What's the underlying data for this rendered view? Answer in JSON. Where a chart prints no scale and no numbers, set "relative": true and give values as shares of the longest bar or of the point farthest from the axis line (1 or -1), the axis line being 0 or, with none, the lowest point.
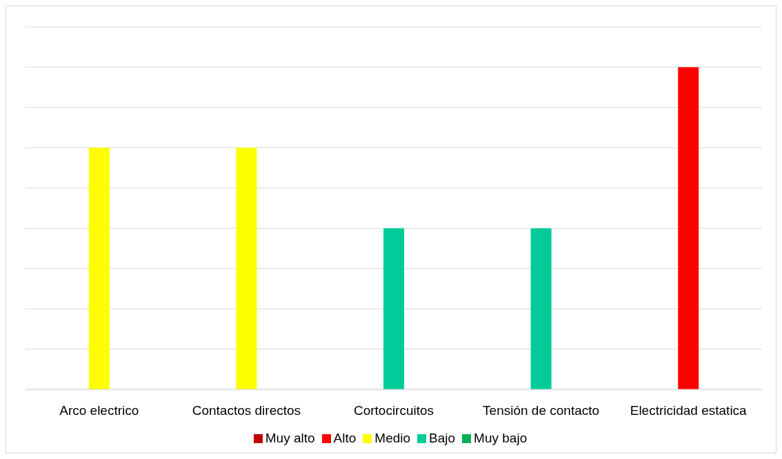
{
  "chart_data": {
    "type": "bar",
    "stacked": true,
    "relative": true,
    "grid": "y",
    "legend": "bottom",
    "categories": [
      "Arco electrico",
      "Contactos directos",
      "Cortocircuitos",
      "Tensión de contacto",
      "Electricidad estatica"
    ],
    "series": [
      {
        "name": "Muy alto",
        "color": "#c00000",
        "values": [
          null,
          null,
          null,
          null,
          null
        ]
      },
      {
        "name": "Alto",
        "color": "#ff0000",
        "values": [
          null,
          null,
          null,
          null,
          1
        ]
      },
      {
        "name": "Medio",
        "color": "#ffff00",
        "values": [
          0.75,
          0.75,
          null,
          null,
          null
        ]
      },
      {
        "name": "Bajo",
        "color": "#00cc99",
        "values": [
          null,
          null,
          0.5,
          0.5,
          null
        ]
      },
      {
        "name": "Muy bajo",
        "color": "#00b050",
        "values": [
          null,
          null,
          null,
          null,
          null
        ]
      }
    ]
  }
}
